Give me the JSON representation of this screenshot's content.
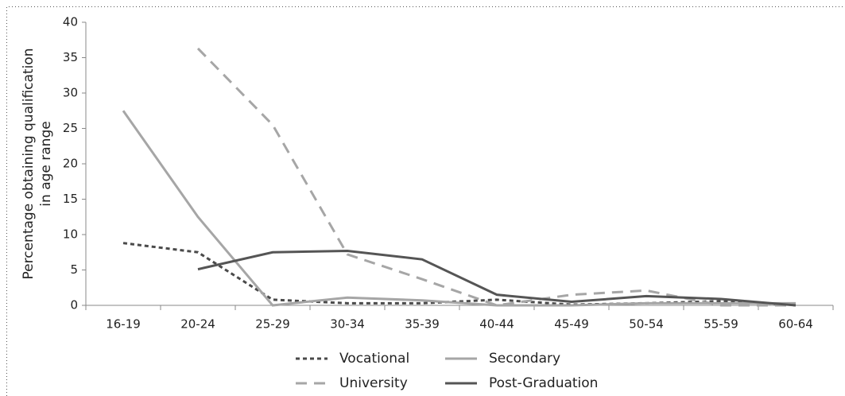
{
  "chart_data": {
    "type": "line",
    "ylabel": [
      "Percentage obtaining qualification",
      "in age range"
    ],
    "categories": [
      "16-19",
      "20-24",
      "25-29",
      "30-34",
      "35-39",
      "40-44",
      "45-49",
      "50-54",
      "55-59",
      "60-64"
    ],
    "series": [
      {
        "name": "Vocational",
        "color": "#4a4a4a",
        "line_style": "dotted",
        "values": [
          8.8,
          7.5,
          0.8,
          0.3,
          0.3,
          0.8,
          0.1,
          0.3,
          0.6,
          0.1
        ]
      },
      {
        "name": "Secondary",
        "color": "#a6a6a6",
        "line_style": "solid",
        "values": [
          27.5,
          12.5,
          0,
          1.1,
          0.7,
          0,
          0,
          0.3,
          0.3,
          0.3
        ]
      },
      {
        "name": "University",
        "color": "#a6a6a6",
        "line_style": "dashed",
        "values": [
          null,
          36.3,
          25.5,
          7.2,
          3.7,
          0,
          1.5,
          2.1,
          0,
          0
        ]
      },
      {
        "name": "Post-Graduation",
        "color": "#555555",
        "line_style": "solid",
        "values": [
          null,
          5.1,
          7.5,
          7.7,
          6.5,
          1.5,
          0.5,
          1.3,
          0.9,
          0
        ]
      }
    ],
    "ylim": [
      0,
      40
    ],
    "yticks": [
      0,
      5,
      10,
      15,
      20,
      25,
      30,
      35,
      40
    ],
    "grid": false
  }
}
